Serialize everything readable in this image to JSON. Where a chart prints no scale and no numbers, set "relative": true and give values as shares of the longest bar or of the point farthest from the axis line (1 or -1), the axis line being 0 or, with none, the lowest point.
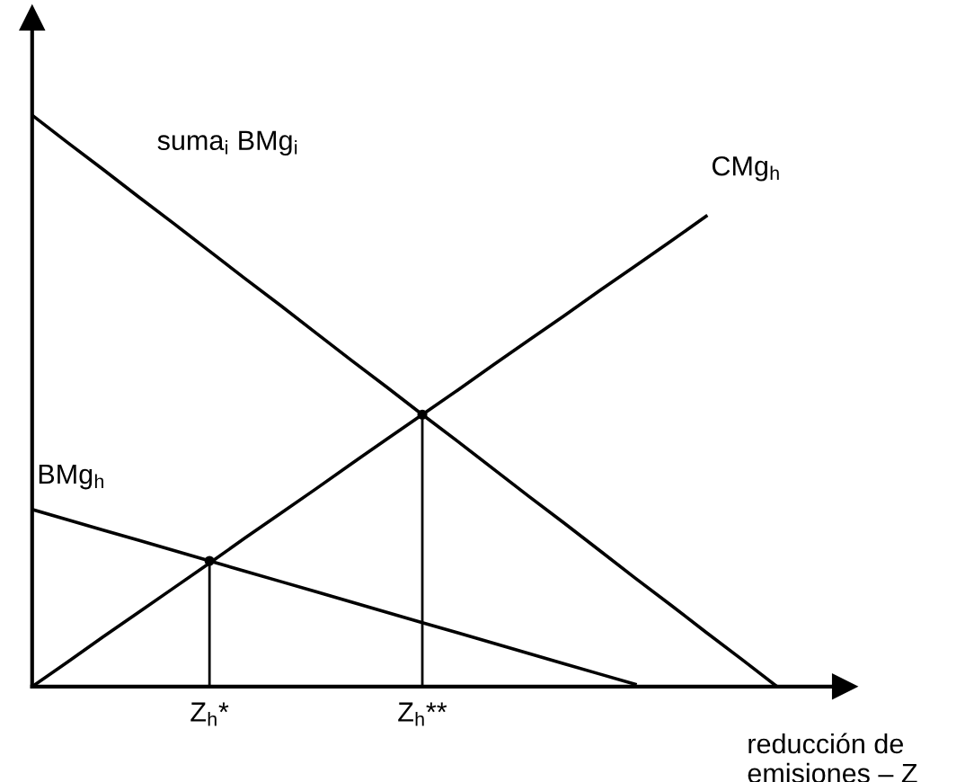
{
  "chart_data": {
    "type": "line",
    "relative": true,
    "legend": false,
    "marker": "none",
    "line_style": "solid",
    "tick_labels": "x",
    "xlabel": "reducción de\nemisiones – Z",
    "categories": [
      null,
      null,
      null,
      null,
      null,
      "Z$_{h}$*",
      null,
      null,
      null,
      null,
      null,
      "Z$_{h}$**",
      null,
      null,
      null,
      null,
      null,
      null,
      null,
      null,
      null,
      null,
      null
    ],
    "series": [
      {
        "name": "suma$_{i}$ BMg$_{i}$",
        "color": "#000000",
        "values": [
          1,
          0.952,
          0.905,
          0.857,
          0.81,
          0.762,
          0.714,
          0.667,
          0.619,
          0.571,
          0.524,
          0.476,
          0.429,
          0.381,
          0.333,
          0.286,
          0.238,
          0.19,
          0.143,
          0.095,
          0.048,
          0,
          null
        ]
      },
      {
        "name": "CMg$_{h}$",
        "color": "#000000",
        "values": [
          0,
          0.043,
          0.087,
          0.13,
          0.173,
          0.216,
          0.26,
          0.303,
          0.346,
          0.39,
          0.433,
          0.476,
          0.519,
          0.563,
          0.606,
          0.649,
          0.693,
          0.736,
          0.779,
          0.823,
          null,
          null,
          null
        ]
      },
      {
        "name": "BMg$_{h}$",
        "color": "#000000",
        "values": [
          0.31,
          0.292,
          0.274,
          0.256,
          0.238,
          0.22,
          0.202,
          0.184,
          0.166,
          0.148,
          0.13,
          0.112,
          0.094,
          0.076,
          0.058,
          0.04,
          0.022,
          0.004,
          null,
          null,
          null,
          null,
          null
        ]
      },
      {
        "type": "lollipop",
        "color": "#000000",
        "marker": "circle",
        "values": [
          null,
          null,
          null,
          null,
          null,
          0.22,
          null,
          null,
          null,
          null,
          null,
          0.476,
          null,
          null,
          null,
          null,
          null,
          null,
          null,
          null,
          null,
          null,
          null
        ]
      }
    ]
  }
}
